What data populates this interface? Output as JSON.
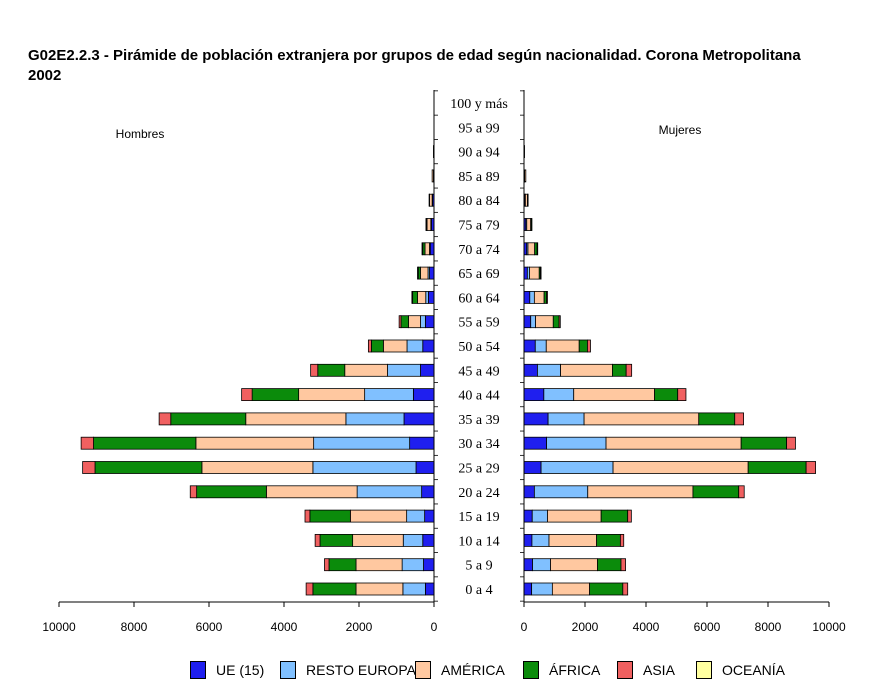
{
  "title_line1": "G02E2.2.3 - Pirámide de población extranjera por grupos de edad según nacionalidad. Corona  Metropolitana",
  "title_line2": "2002",
  "chart_data": {
    "type": "bar",
    "orientation": "horizontal-pyramid",
    "group_labels": {
      "left": "Hombres",
      "right": "Mujeres"
    },
    "categories": [
      "0 a 4",
      "5 a 9",
      "10 a 14",
      "15 a 19",
      "20 a 24",
      "25 a 29",
      "30 a 34",
      "35 a 39",
      "40 a 44",
      "45 a 49",
      "50 a 54",
      "55 a 59",
      "60 a 64",
      "65 a 69",
      "70 a 74",
      "75 a 79",
      "80 a 84",
      "85 a 89",
      "90 a 94",
      "95 a 99",
      "100 y más"
    ],
    "series": [
      {
        "name": "UE (15)",
        "color": "#1f1fef",
        "hombres": [
          230,
          280,
          300,
          250,
          330,
          480,
          650,
          800,
          550,
          360,
          300,
          230,
          150,
          120,
          100,
          70,
          40,
          15,
          5,
          0,
          0
        ],
        "mujeres": [
          250,
          280,
          260,
          270,
          340,
          560,
          740,
          790,
          650,
          440,
          370,
          220,
          190,
          110,
          90,
          60,
          35,
          15,
          8,
          0,
          0
        ]
      },
      {
        "name": "RESTO EUROPA",
        "color": "#80c0ff",
        "hombres": [
          600,
          570,
          520,
          480,
          1720,
          2750,
          2560,
          1550,
          1300,
          880,
          420,
          130,
          70,
          40,
          20,
          15,
          10,
          0,
          0,
          0,
          0
        ],
        "mujeres": [
          680,
          590,
          560,
          500,
          1750,
          2360,
          1950,
          1180,
          980,
          760,
          360,
          160,
          150,
          70,
          40,
          30,
          10,
          5,
          0,
          0,
          0
        ]
      },
      {
        "name": "AMÉRICA",
        "color": "#ffc8a0",
        "hombres": [
          1250,
          1230,
          1350,
          1500,
          2420,
          2960,
          3140,
          2670,
          1760,
          1140,
          630,
          320,
          220,
          200,
          120,
          100,
          70,
          35,
          10,
          0,
          0
        ],
        "mujeres": [
          1220,
          1540,
          1560,
          1760,
          3450,
          4430,
          4430,
          3760,
          2650,
          1700,
          1080,
          580,
          320,
          320,
          220,
          130,
          70,
          40,
          10,
          0,
          0
        ]
      },
      {
        "name": "ÁFRICA",
        "color": "#0b8b0b",
        "hombres": [
          1150,
          720,
          870,
          1080,
          1860,
          2850,
          2730,
          2000,
          1240,
          720,
          320,
          200,
          130,
          60,
          60,
          20,
          5,
          0,
          0,
          0,
          0
        ],
        "mujeres": [
          1090,
          770,
          780,
          870,
          1500,
          1900,
          1490,
          1180,
          760,
          450,
          270,
          190,
          80,
          40,
          80,
          30,
          15,
          0,
          0,
          0,
          0
        ]
      },
      {
        "name": "ASIA",
        "color": "#f06060",
        "hombres": [
          180,
          120,
          130,
          130,
          170,
          330,
          330,
          310,
          280,
          190,
          80,
          50,
          20,
          20,
          20,
          10,
          5,
          0,
          0,
          0,
          0
        ],
        "mujeres": [
          160,
          150,
          110,
          120,
          180,
          310,
          290,
          290,
          270,
          180,
          100,
          40,
          30,
          20,
          20,
          10,
          5,
          0,
          0,
          0,
          0
        ]
      },
      {
        "name": "OCEANÍA",
        "color": "#ffffa0",
        "hombres": [
          0,
          0,
          0,
          0,
          0,
          0,
          0,
          0,
          0,
          0,
          0,
          0,
          0,
          0,
          0,
          0,
          0,
          0,
          0,
          0,
          0
        ],
        "mujeres": [
          0,
          0,
          0,
          0,
          0,
          0,
          0,
          0,
          0,
          0,
          0,
          0,
          0,
          0,
          0,
          0,
          0,
          0,
          0,
          0,
          0
        ]
      }
    ],
    "xlim_hombres": [
      10000,
      0
    ],
    "xlim_mujeres": [
      0,
      10000
    ],
    "xticks_hombres": [
      "10000",
      "8000",
      "6000",
      "4000",
      "2000",
      "0"
    ],
    "xticks_mujeres": [
      "0",
      "2000",
      "4000",
      "6000",
      "8000",
      "10000"
    ],
    "legend_position": "bottom",
    "grid": false
  }
}
